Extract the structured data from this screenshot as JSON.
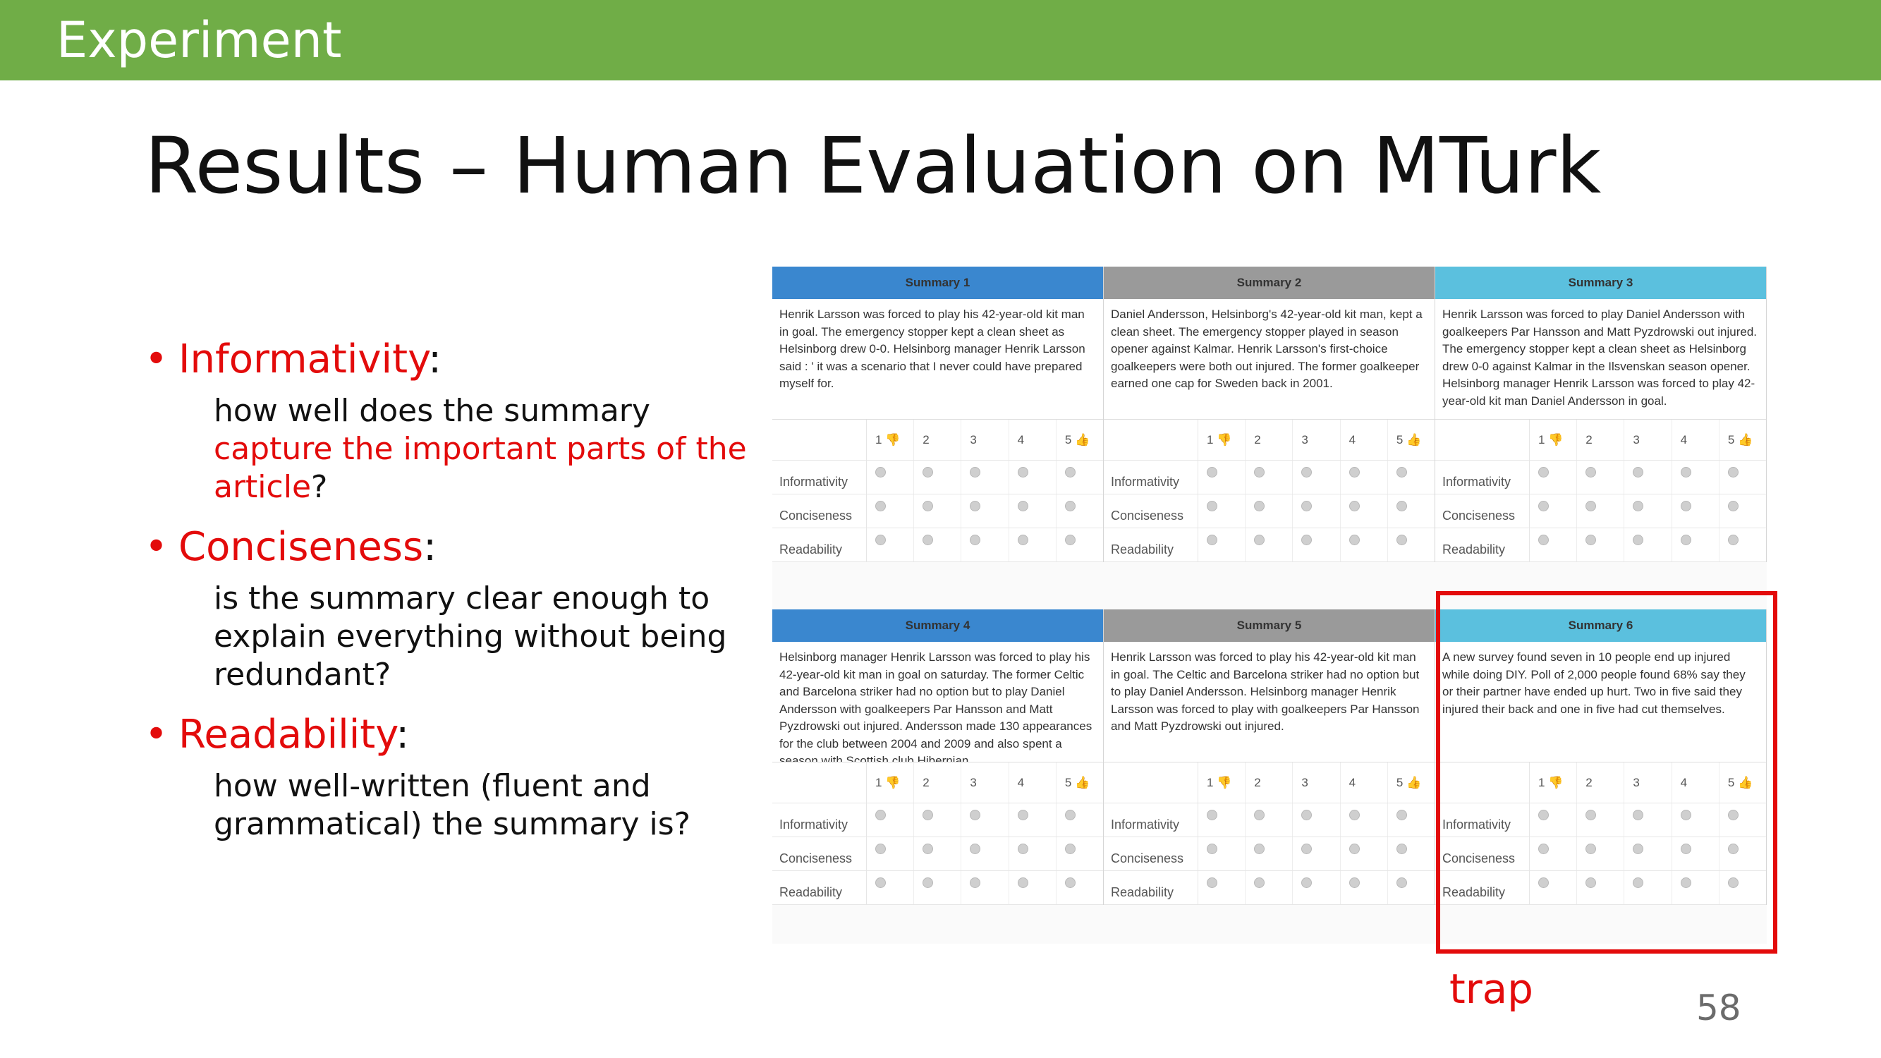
{
  "header": {
    "section": "Experiment"
  },
  "title": "Results – Human Evaluation on MTurk",
  "bullets": [
    {
      "term": "Informativity",
      "desc_pre": "how well does the summary ",
      "desc_hl": "capture the important parts of the article",
      "desc_post": "?"
    },
    {
      "term": "Conciseness",
      "desc_pre": "is the summary clear enough to explain everything without being redundant?",
      "desc_hl": "",
      "desc_post": ""
    },
    {
      "term": "Readability",
      "desc_pre": "how well-written (fluent and grammatical) the summary is?",
      "desc_hl": "",
      "desc_post": ""
    }
  ],
  "colon": ":",
  "bullet_glyph": "•",
  "rating_scale": [
    "1 👎",
    "2",
    "3",
    "4",
    "5 👍"
  ],
  "criteria": [
    "Informativity",
    "Conciseness",
    "Readability"
  ],
  "summaries": [
    {
      "heading": "Summary 1",
      "header_color": "#3a87cf",
      "text": "Henrik Larsson was forced to play his 42-year-old kit man in goal. The emergency stopper kept a clean sheet as Helsinborg drew 0-0. Helsinborg manager Henrik Larsson said : ' it was a scenario that I never could have prepared myself for."
    },
    {
      "heading": "Summary 2",
      "header_color": "#9a9a9a",
      "text": "Daniel Andersson, Helsinborg's 42-year-old kit man, kept a clean sheet. The emergency stopper played in season opener against Kalmar. Henrik Larsson's first-choice goalkeepers were both out injured. The former goalkeeper earned one cap for Sweden back in 2001."
    },
    {
      "heading": "Summary 3",
      "header_color": "#5bc0de",
      "text": "Henrik Larsson was forced to play Daniel Andersson with goalkeepers Par Hansson and Matt Pyzdrowski out injured. The emergency stopper kept a clean sheet as Helsinborg drew 0-0 against Kalmar in the Ilsvenskan season opener. Helsinborg manager Henrik Larsson was forced to play 42-year-old kit man Daniel Andersson in goal."
    },
    {
      "heading": "Summary 4",
      "header_color": "#3a87cf",
      "text": "Helsinborg manager Henrik Larsson was forced to play his 42-year-old kit man in goal on saturday. The former Celtic and Barcelona striker had no option but to play Daniel Andersson with goalkeepers Par Hansson and Matt Pyzdrowski out injured. Andersson made 130 appearances for the club between 2004 and 2009 and also spent a season with Scottish club Hibernian."
    },
    {
      "heading": "Summary 5",
      "header_color": "#9a9a9a",
      "text": "Henrik Larsson was forced to play his 42-year-old kit man in goal. The Celtic and Barcelona striker had no option but to play Daniel Andersson. Helsinborg manager Henrik Larsson was forced to play with goalkeepers Par Hansson and Matt Pyzdrowski out injured."
    },
    {
      "heading": "Summary 6",
      "header_color": "#5bc0de",
      "text": "A new survey found seven in 10 people end up injured while doing DIY. Poll of 2,000 people found 68% say they or their partner have ended up hurt. Two in five said they injured their back and one in five had cut themselves."
    }
  ],
  "trap_label": "trap",
  "page_number": "58",
  "colors": {
    "accent_red": "#e30b0b",
    "header_green": "#70ad47"
  }
}
